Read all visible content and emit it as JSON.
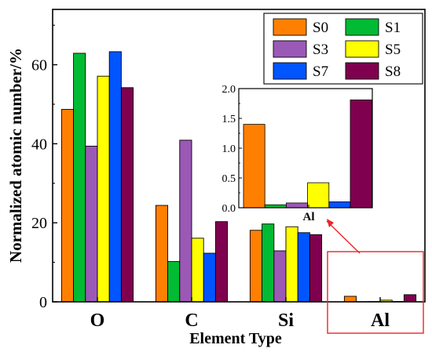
{
  "chart_data": [
    {
      "type": "bar",
      "title": "",
      "xlabel": "Element Type",
      "ylabel": "Normalized atomic number/%",
      "categories": [
        "O",
        "C",
        "Si",
        "Al"
      ],
      "ylim": [
        0,
        74
      ],
      "yticks": [
        0,
        20,
        40,
        60
      ],
      "grid": false,
      "legend_placement": "top-right",
      "series": [
        {
          "name": "S0",
          "color": "#FF8000",
          "values": [
            48.7,
            24.4,
            18.1,
            1.4
          ]
        },
        {
          "name": "S1",
          "color": "#00BB33",
          "values": [
            62.9,
            10.2,
            19.7,
            0.05
          ]
        },
        {
          "name": "S3",
          "color": "#9B59B6",
          "values": [
            39.4,
            40.9,
            12.9,
            0.08
          ]
        },
        {
          "name": "S5",
          "color": "#FFFF00",
          "values": [
            57.1,
            16.1,
            19.0,
            0.42
          ]
        },
        {
          "name": "S7",
          "color": "#0055FF",
          "values": [
            63.3,
            12.3,
            17.5,
            0.1
          ]
        },
        {
          "name": "S8",
          "color": "#800050",
          "values": [
            54.2,
            20.3,
            17.0,
            1.81
          ]
        }
      ]
    },
    {
      "type": "bar",
      "title": "",
      "xlabel": "",
      "ylabel": "",
      "categories": [
        "Al"
      ],
      "ylim": [
        0,
        2.0
      ],
      "yticks": [
        0.0,
        0.5,
        1.0,
        1.5,
        2.0
      ],
      "ytick_labels": [
        "0.0",
        "0.5",
        "1.0",
        "1.5",
        "2.0"
      ],
      "series": [
        {
          "name": "S0",
          "color": "#FF8000",
          "values": [
            1.4
          ]
        },
        {
          "name": "S1",
          "color": "#00BB33",
          "values": [
            0.05
          ]
        },
        {
          "name": "S3",
          "color": "#9B59B6",
          "values": [
            0.08
          ]
        },
        {
          "name": "S5",
          "color": "#FFFF00",
          "values": [
            0.42
          ]
        },
        {
          "name": "S7",
          "color": "#0055FF",
          "values": [
            0.1
          ]
        },
        {
          "name": "S8",
          "color": "#800050",
          "values": [
            1.81
          ]
        }
      ]
    }
  ],
  "annotation": {
    "highlight_color": "#E8262A"
  }
}
